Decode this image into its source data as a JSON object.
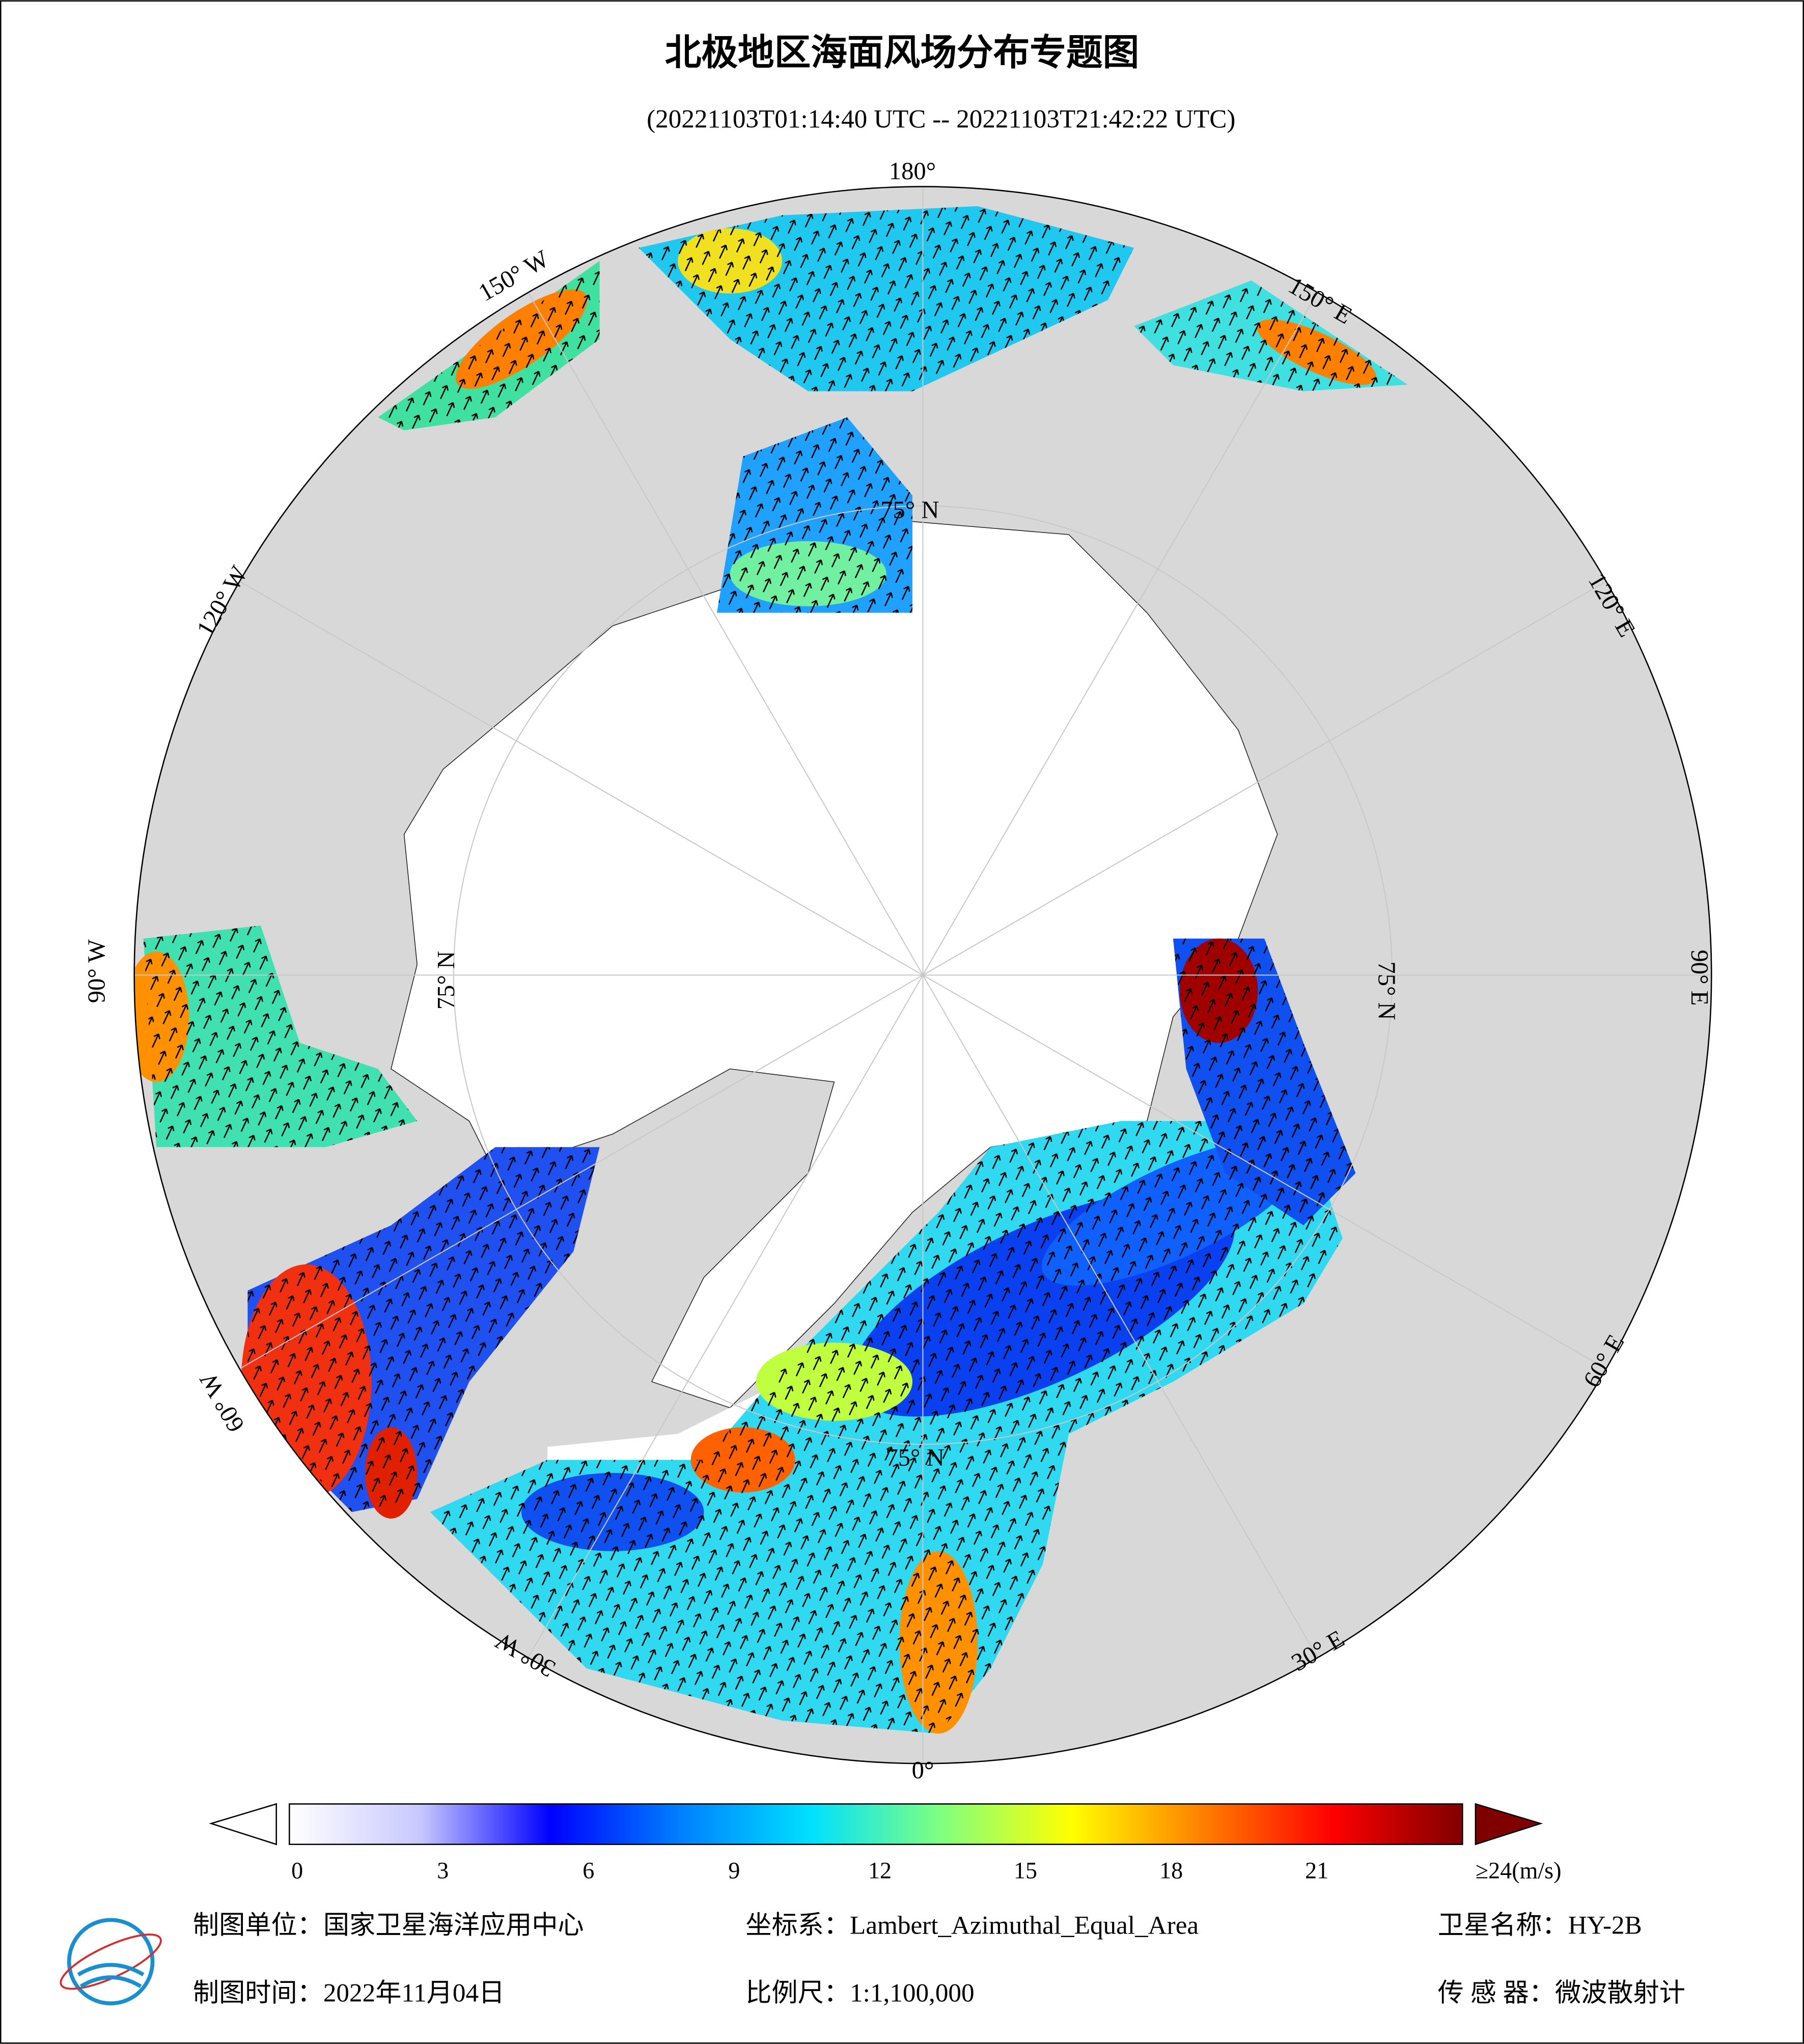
{
  "title": "北极地区海面风场分布专题图",
  "subtitle": "(20221103T01:14:40 UTC -- 20221103T21:42:22 UTC)",
  "map": {
    "longitude_labels": [
      "180°",
      "150° E",
      "120° E",
      "90° E",
      "60° E",
      "30° E",
      "0°",
      "30° W",
      "60° W",
      "90° W",
      "120° W",
      "150° W"
    ],
    "latitude_labels": [
      "75° N",
      "75° N",
      "75° N",
      "75° N"
    ]
  },
  "colorbar": {
    "lim": [
      0,
      24
    ],
    "ticks": [
      0,
      3,
      6,
      9,
      12,
      15,
      18,
      21,
      {
        "value": 24,
        "label": "≥24(m/s)"
      }
    ],
    "colors": [
      "#ffffff",
      "#c8c8ff",
      "#0000ff",
      "#0080ff",
      "#00e0ff",
      "#80ff80",
      "#ffff00",
      "#ff8000",
      "#ff0000",
      "#800000"
    ]
  },
  "footer": {
    "unit": "制图单位：国家卫星海洋应用中心",
    "coordinate_system": "坐标系：Lambert_Azimuthal_Equal_Area",
    "satellite": "卫星名称：HY-2B",
    "date": "制图时间：2022年11月04日",
    "scale": "比例尺：1:1,100,000",
    "sensor": "传 感 器：微波散射计"
  }
}
